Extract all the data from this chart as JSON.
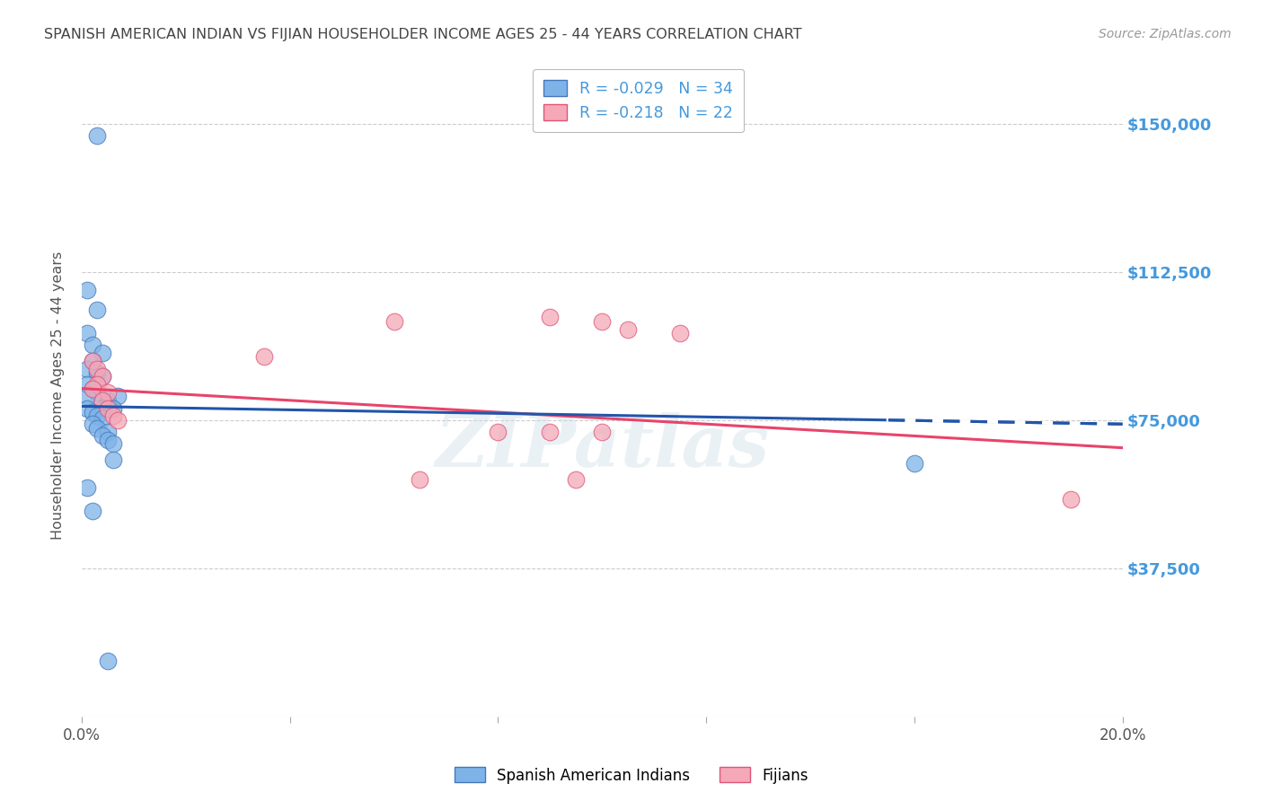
{
  "title": "SPANISH AMERICAN INDIAN VS FIJIAN HOUSEHOLDER INCOME AGES 25 - 44 YEARS CORRELATION CHART",
  "source": "Source: ZipAtlas.com",
  "ylabel": "Householder Income Ages 25 - 44 years",
  "watermark": "ZIPatlas",
  "xlim": [
    0.0,
    0.2
  ],
  "ylim": [
    0,
    162500
  ],
  "yticks": [
    0,
    37500,
    75000,
    112500,
    150000
  ],
  "ytick_labels": [
    "",
    "$37,500",
    "$75,000",
    "$112,500",
    "$150,000"
  ],
  "xticks": [
    0.0,
    0.04,
    0.08,
    0.12,
    0.16,
    0.2
  ],
  "xtick_labels": [
    "0.0%",
    "",
    "",
    "",
    "",
    "20.0%"
  ],
  "blue_R": -0.029,
  "blue_N": 34,
  "pink_R": -0.218,
  "pink_N": 22,
  "legend_label_blue": "Spanish American Indians",
  "legend_label_pink": "Fijians",
  "blue_color": "#7EB3E8",
  "pink_color": "#F4A8B8",
  "blue_edge_color": "#4477BB",
  "pink_edge_color": "#E05575",
  "blue_line_color": "#2255AA",
  "pink_line_color": "#E8446A",
  "blue_scatter": [
    [
      0.003,
      147000
    ],
    [
      0.001,
      108000
    ],
    [
      0.003,
      103000
    ],
    [
      0.001,
      97000
    ],
    [
      0.002,
      94000
    ],
    [
      0.004,
      92000
    ],
    [
      0.002,
      90000
    ],
    [
      0.001,
      88000
    ],
    [
      0.003,
      87000
    ],
    [
      0.004,
      86000
    ],
    [
      0.001,
      84000
    ],
    [
      0.002,
      83000
    ],
    [
      0.003,
      82000
    ],
    [
      0.001,
      81000
    ],
    [
      0.005,
      80000
    ],
    [
      0.005,
      79000
    ],
    [
      0.007,
      81000
    ],
    [
      0.001,
      78000
    ],
    [
      0.004,
      78000
    ],
    [
      0.006,
      78000
    ],
    [
      0.002,
      77000
    ],
    [
      0.003,
      76000
    ],
    [
      0.004,
      75500
    ],
    [
      0.002,
      74000
    ],
    [
      0.003,
      73000
    ],
    [
      0.005,
      72000
    ],
    [
      0.004,
      71000
    ],
    [
      0.005,
      70000
    ],
    [
      0.006,
      69000
    ],
    [
      0.006,
      65000
    ],
    [
      0.001,
      58000
    ],
    [
      0.002,
      52000
    ],
    [
      0.16,
      64000
    ],
    [
      0.005,
      14000
    ]
  ],
  "pink_scatter": [
    [
      0.002,
      90000
    ],
    [
      0.003,
      88000
    ],
    [
      0.004,
      86000
    ],
    [
      0.003,
      84000
    ],
    [
      0.002,
      83000
    ],
    [
      0.005,
      82000
    ],
    [
      0.004,
      80000
    ],
    [
      0.005,
      78000
    ],
    [
      0.006,
      76000
    ],
    [
      0.007,
      75000
    ],
    [
      0.035,
      91000
    ],
    [
      0.06,
      100000
    ],
    [
      0.09,
      101000
    ],
    [
      0.1,
      100000
    ],
    [
      0.105,
      98000
    ],
    [
      0.115,
      97000
    ],
    [
      0.08,
      72000
    ],
    [
      0.09,
      72000
    ],
    [
      0.1,
      72000
    ],
    [
      0.065,
      60000
    ],
    [
      0.095,
      60000
    ],
    [
      0.19,
      55000
    ]
  ],
  "blue_trend_x": [
    0.0,
    0.2
  ],
  "blue_trend_y": [
    78500,
    74000
  ],
  "pink_trend_x": [
    0.0,
    0.2
  ],
  "pink_trend_y": [
    83000,
    68000
  ],
  "bg_color": "#FFFFFF",
  "grid_color": "#CCCCCC",
  "title_color": "#444444",
  "source_color": "#999999",
  "right_tick_color": "#4499DD"
}
